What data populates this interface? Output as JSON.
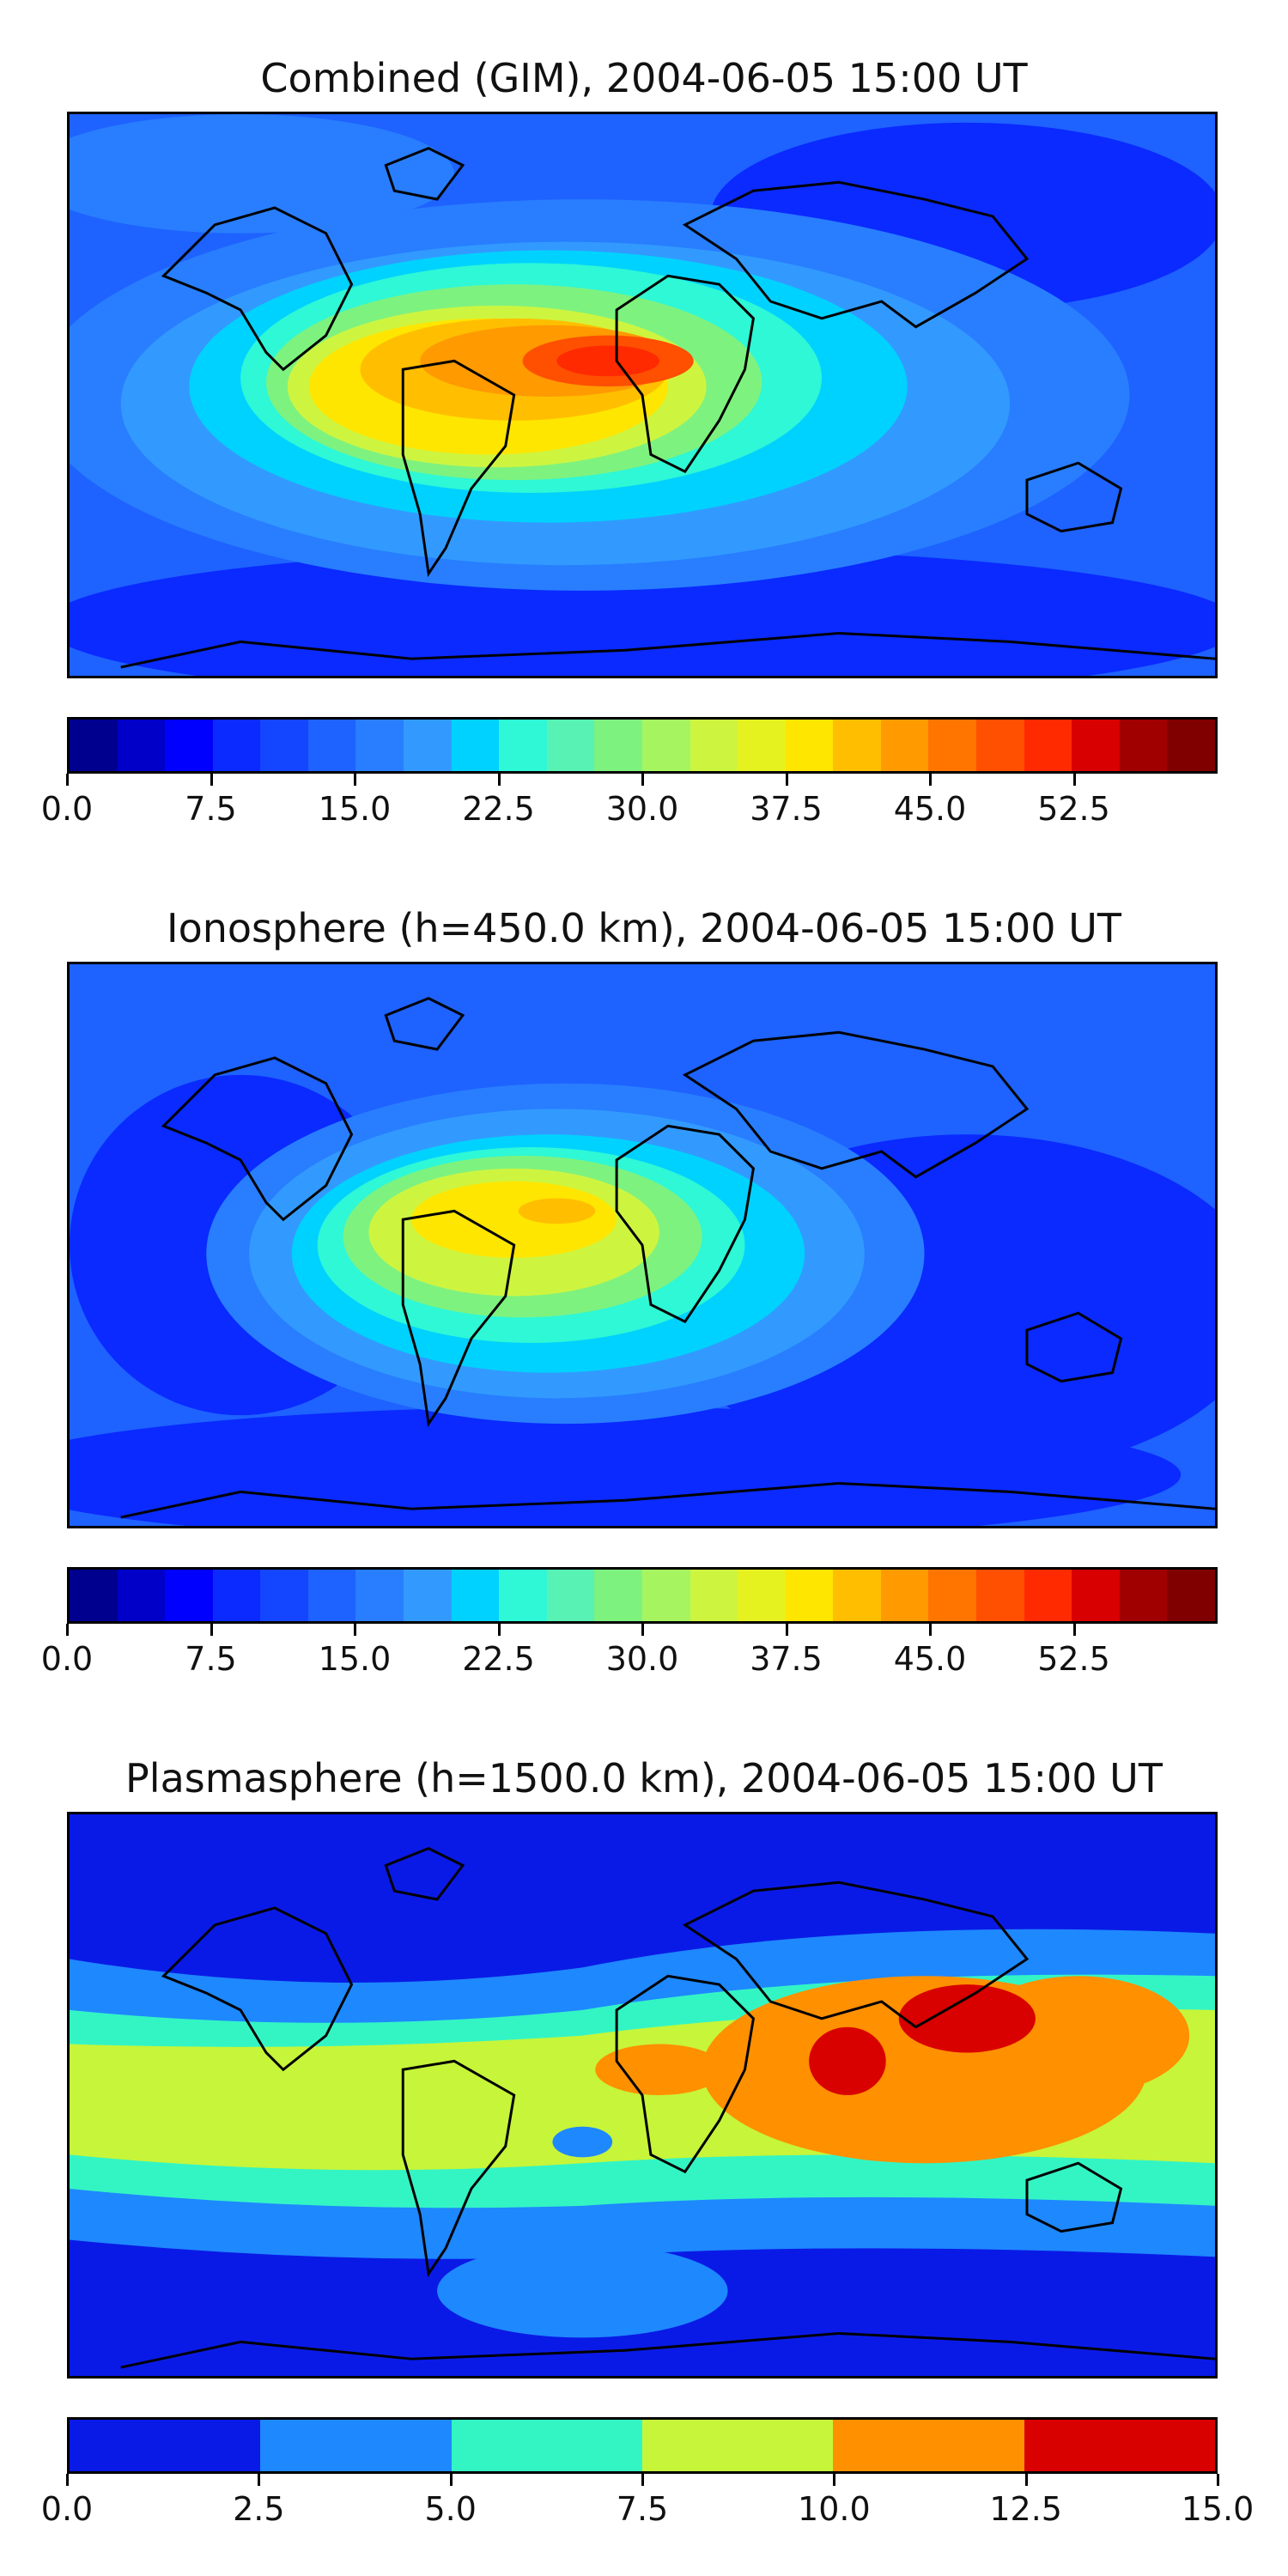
{
  "panels": [
    {
      "title": "Combined (GIM), 2004-06-05 15:00 UT",
      "colorbar": {
        "colors": [
          "#00008f",
          "#0000c9",
          "#0000ff",
          "#0a2aff",
          "#1446ff",
          "#1e62ff",
          "#287eff",
          "#329aff",
          "#00d2ff",
          "#2ef8d6",
          "#57f2b4",
          "#7ef27f",
          "#a6f560",
          "#cdf540",
          "#e6f21f",
          "#ffe600",
          "#ffbf00",
          "#ff9a00",
          "#ff7500",
          "#ff4f00",
          "#ff2a00",
          "#d80000",
          "#a00000",
          "#800000"
        ],
        "ticks": [
          "0.0",
          "7.5",
          "15.0",
          "22.5",
          "30.0",
          "37.5",
          "45.0",
          "52.5"
        ]
      }
    },
    {
      "title": "Ionosphere  (h=450.0 km), 2004-06-05 15:00 UT",
      "colorbar": {
        "colors": [
          "#00008f",
          "#0000c9",
          "#0000ff",
          "#0a2aff",
          "#1446ff",
          "#1e62ff",
          "#287eff",
          "#329aff",
          "#00d2ff",
          "#2ef8d6",
          "#57f2b4",
          "#7ef27f",
          "#a6f560",
          "#cdf540",
          "#e6f21f",
          "#ffe600",
          "#ffbf00",
          "#ff9a00",
          "#ff7500",
          "#ff4f00",
          "#ff2a00",
          "#d80000",
          "#a00000",
          "#800000"
        ],
        "ticks": [
          "0.0",
          "7.5",
          "15.0",
          "22.5",
          "30.0",
          "37.5",
          "45.0",
          "52.5"
        ]
      }
    },
    {
      "title": "Plasmasphere (h=1500.0 km), 2004-06-05 15:00 UT",
      "colorbar": {
        "colors": [
          "#0a1ae6",
          "#1e88ff",
          "#33f5c4",
          "#c6f53a",
          "#ff9000",
          "#d90000"
        ],
        "ticks": [
          "0.0",
          "2.5",
          "5.0",
          "7.5",
          "10.0",
          "12.5",
          "15.0"
        ]
      }
    }
  ]
}
